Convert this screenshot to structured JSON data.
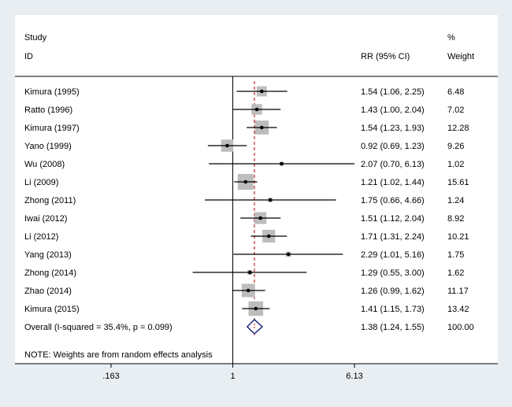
{
  "chart_data": {
    "type": "forest",
    "header": {
      "study_line1": "Study",
      "study_line2": "ID",
      "effect_label": "RR (95% CI)",
      "weight_line1": "%",
      "weight_line2": "Weight"
    },
    "x_scale": "log",
    "x_range": [
      0.163,
      6.13
    ],
    "null_value": 1,
    "ticks": [
      {
        "value": 0.163,
        "label": ".163"
      },
      {
        "value": 1,
        "label": "1"
      },
      {
        "value": 6.13,
        "label": "6.13"
      }
    ],
    "studies": [
      {
        "label": "Kimura (1995)",
        "rr": 1.54,
        "lo": 1.06,
        "hi": 2.25,
        "ci_text": "1.54 (1.06, 2.25)",
        "weight": 6.48,
        "weight_text": "6.48"
      },
      {
        "label": "Ratto (1996)",
        "rr": 1.43,
        "lo": 1.0,
        "hi": 2.04,
        "ci_text": "1.43 (1.00, 2.04)",
        "weight": 7.02,
        "weight_text": "7.02"
      },
      {
        "label": "Kimura (1997)",
        "rr": 1.54,
        "lo": 1.23,
        "hi": 1.93,
        "ci_text": "1.54 (1.23, 1.93)",
        "weight": 12.28,
        "weight_text": "12.28"
      },
      {
        "label": "Yano (1999)",
        "rr": 0.92,
        "lo": 0.69,
        "hi": 1.23,
        "ci_text": "0.92 (0.69, 1.23)",
        "weight": 9.26,
        "weight_text": "9.26"
      },
      {
        "label": "Wu (2008)",
        "rr": 2.07,
        "lo": 0.7,
        "hi": 6.13,
        "ci_text": "2.07 (0.70, 6.13)",
        "weight": 1.02,
        "weight_text": "1.02"
      },
      {
        "label": "Li (2009)",
        "rr": 1.21,
        "lo": 1.02,
        "hi": 1.44,
        "ci_text": "1.21 (1.02, 1.44)",
        "weight": 15.61,
        "weight_text": "15.61"
      },
      {
        "label": "Zhong (2011)",
        "rr": 1.75,
        "lo": 0.66,
        "hi": 4.66,
        "ci_text": "1.75 (0.66, 4.66)",
        "weight": 1.24,
        "weight_text": "1.24"
      },
      {
        "label": "Iwai (2012)",
        "rr": 1.51,
        "lo": 1.12,
        "hi": 2.04,
        "ci_text": "1.51 (1.12, 2.04)",
        "weight": 8.92,
        "weight_text": "8.92"
      },
      {
        "label": "Li (2012)",
        "rr": 1.71,
        "lo": 1.31,
        "hi": 2.24,
        "ci_text": "1.71 (1.31, 2.24)",
        "weight": 10.21,
        "weight_text": "10.21"
      },
      {
        "label": "Yang (2013)",
        "rr": 2.29,
        "lo": 1.01,
        "hi": 5.16,
        "ci_text": "2.29 (1.01, 5.16)",
        "weight": 1.75,
        "weight_text": "1.75"
      },
      {
        "label": "Zhong (2014)",
        "rr": 1.29,
        "lo": 0.55,
        "hi": 3.0,
        "ci_text": "1.29 (0.55, 3.00)",
        "weight": 1.62,
        "weight_text": "1.62"
      },
      {
        "label": "Zhao (2014)",
        "rr": 1.26,
        "lo": 0.99,
        "hi": 1.62,
        "ci_text": "1.26 (0.99, 1.62)",
        "weight": 11.17,
        "weight_text": "11.17"
      },
      {
        "label": "Kimura (2015)",
        "rr": 1.41,
        "lo": 1.15,
        "hi": 1.73,
        "ci_text": "1.41 (1.15, 1.73)",
        "weight": 13.42,
        "weight_text": "13.42"
      }
    ],
    "overall": {
      "label": "Overall  (I-squared = 35.4%, p = 0.099)",
      "rr": 1.38,
      "lo": 1.24,
      "hi": 1.55,
      "ci_text": "1.38 (1.24, 1.55)",
      "weight_text": "100.00"
    },
    "note": "NOTE: Weights are from random effects analysis",
    "colors": {
      "background": "#e8eef2",
      "panel": "#ffffff",
      "weight_box": "#bdbdbd",
      "ci_line": "#000000",
      "overall_line": "#c00000",
      "diamond": "#1a237e"
    }
  }
}
